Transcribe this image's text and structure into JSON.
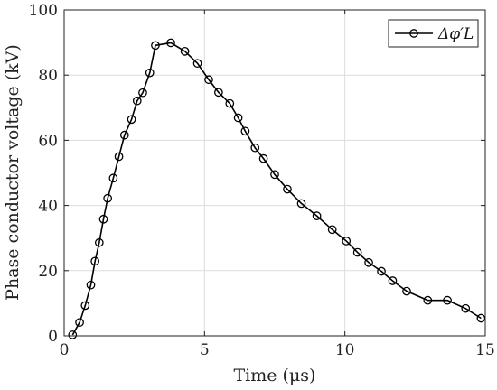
{
  "chart_data": {
    "type": "line",
    "xlabel": "Time (μs)",
    "ylabel": "Phase conductor voltage (kV)",
    "xlim": [
      0,
      15
    ],
    "ylim": [
      0,
      100
    ],
    "xticks": [
      0,
      5,
      10,
      15
    ],
    "yticks": [
      0,
      20,
      40,
      60,
      80,
      100
    ],
    "grid": true,
    "legend_position": "top-right",
    "line_color": "#000000",
    "marker": "circle",
    "series": [
      {
        "name": "Δφ′L",
        "x": [
          0.3,
          0.55,
          0.75,
          0.95,
          1.1,
          1.25,
          1.4,
          1.55,
          1.75,
          1.95,
          2.15,
          2.4,
          2.6,
          2.8,
          3.05,
          3.25,
          3.8,
          4.3,
          4.75,
          5.15,
          5.5,
          5.9,
          6.2,
          6.45,
          6.8,
          7.1,
          7.5,
          7.95,
          8.45,
          9.0,
          9.55,
          10.05,
          10.45,
          10.85,
          11.3,
          11.7,
          12.2,
          12.95,
          13.65,
          14.3,
          14.85
        ],
        "y": [
          0.3,
          4.1,
          9.3,
          15.6,
          22.9,
          28.6,
          35.8,
          42.2,
          48.4,
          55.0,
          61.6,
          66.4,
          72.1,
          74.6,
          80.7,
          89.1,
          89.9,
          87.3,
          83.6,
          78.6,
          74.7,
          71.3,
          66.9,
          62.8,
          57.7,
          54.4,
          49.5,
          45.0,
          40.6,
          36.8,
          32.6,
          29.1,
          25.6,
          22.5,
          19.8,
          16.9,
          13.7,
          10.9,
          10.9,
          8.4,
          5.4
        ]
      }
    ]
  }
}
